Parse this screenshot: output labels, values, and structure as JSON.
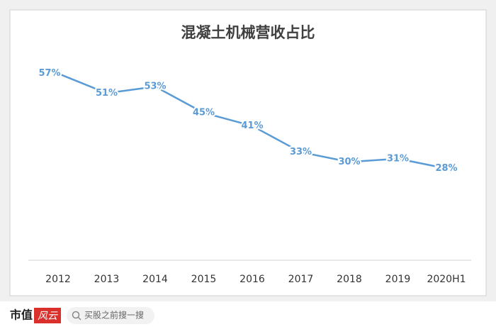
{
  "chart_data": {
    "type": "line",
    "title": "混凝土机械营收占比",
    "categories": [
      "2012",
      "2013",
      "2014",
      "2015",
      "2016",
      "2017",
      "2018",
      "2019",
      "2020H1"
    ],
    "values": [
      57,
      51,
      53,
      45,
      41,
      33,
      30,
      31,
      28
    ],
    "value_labels": [
      "57%",
      "51%",
      "53%",
      "45%",
      "41%",
      "33%",
      "30%",
      "31%",
      "28%"
    ],
    "color": "#5b9bd5",
    "ylim": [
      0,
      70
    ],
    "grid": false
  },
  "footer": {
    "brand": "市值",
    "logo": "风云",
    "search": "买股之前搜一搜"
  }
}
